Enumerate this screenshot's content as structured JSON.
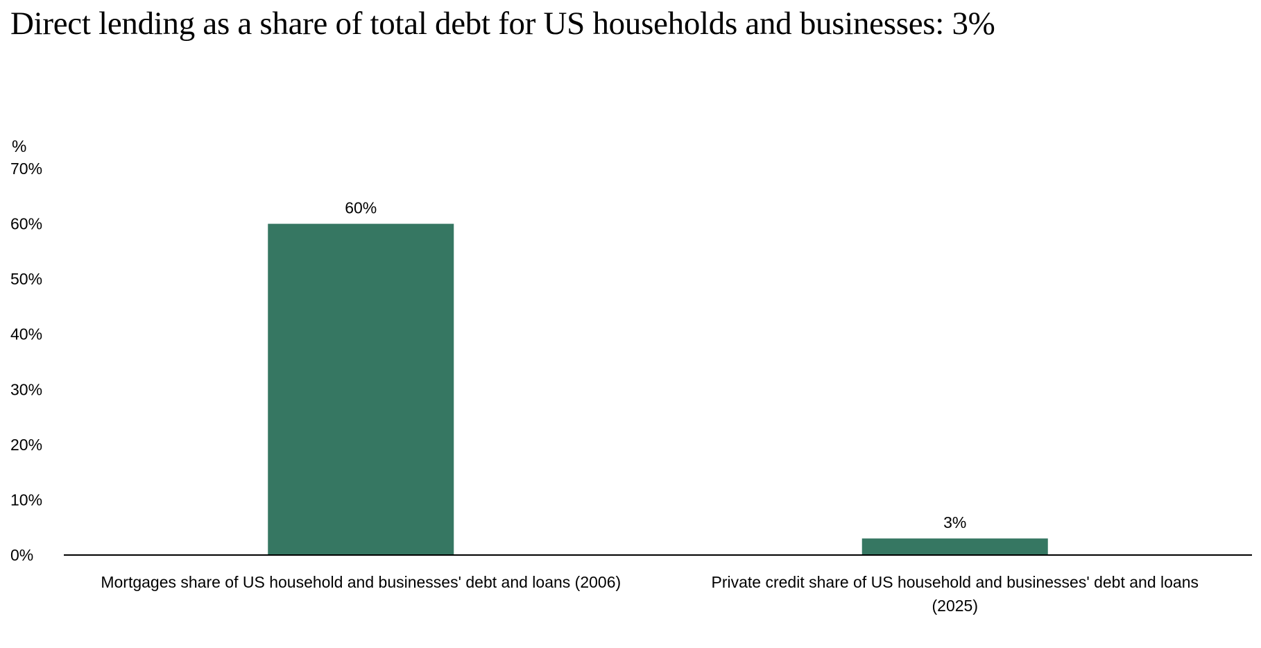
{
  "chart_data": {
    "type": "bar",
    "title": "Direct lending as a share of total debt for US households and businesses: 3%",
    "ylabel": "%",
    "xlabel": "",
    "categories": [
      [
        "Mortgages share of US household and businesses' debt and loans (2006)"
      ],
      [
        "Private credit share of US household and businesses' debt and loans",
        "(2025)"
      ]
    ],
    "values": [
      60,
      3
    ],
    "data_labels": [
      "60%",
      "3%"
    ],
    "ylim": [
      0,
      70
    ],
    "yticks": [
      0,
      10,
      20,
      30,
      40,
      50,
      60,
      70
    ],
    "ytick_labels": [
      "0%",
      "10%",
      "20%",
      "30%",
      "40%",
      "50%",
      "60%",
      "70%"
    ],
    "bar_color": "#367762",
    "axis_color": "#000000",
    "grid": false,
    "legend": "none"
  }
}
